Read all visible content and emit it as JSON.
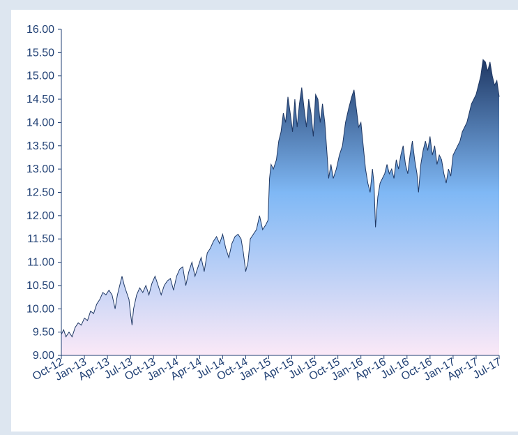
{
  "chart_data": {
    "type": "area",
    "title": "",
    "xlabel": "",
    "ylabel": "",
    "ylim": [
      9.0,
      16.0
    ],
    "y_ticks": [
      "9.00",
      "9.50",
      "10.00",
      "10.50",
      "11.00",
      "11.50",
      "12.00",
      "12.50",
      "13.00",
      "13.50",
      "14.00",
      "14.50",
      "15.00",
      "15.50",
      "16.00"
    ],
    "x_ticks": [
      "Oct-12",
      "Jan-13",
      "Apr-13",
      "Jul-13",
      "Oct-13",
      "Jan-14",
      "Apr-14",
      "Jul-14",
      "Oct-14",
      "Jan-15",
      "Apr-15",
      "Jul-15",
      "Oct-15",
      "Jan-16",
      "Apr-16",
      "Jul-16",
      "Oct-16",
      "Jan-17",
      "Apr-17",
      "Jul-17"
    ],
    "grid": false,
    "legend": "none",
    "colors": {
      "line": "#1f3864",
      "fill_top": "#1f3864",
      "fill_mid": "#7fb8f5",
      "fill_bottom": "#fbe9f7",
      "axis": "#1f3f73"
    },
    "series": [
      {
        "values": [
          [
            0,
            9.45
          ],
          [
            0.3,
            9.55
          ],
          [
            0.6,
            9.4
          ],
          [
            1.0,
            9.5
          ],
          [
            1.4,
            9.4
          ],
          [
            1.8,
            9.6
          ],
          [
            2.2,
            9.7
          ],
          [
            2.6,
            9.65
          ],
          [
            3.0,
            9.8
          ],
          [
            3.4,
            9.75
          ],
          [
            3.8,
            9.95
          ],
          [
            4.2,
            9.9
          ],
          [
            4.6,
            10.1
          ],
          [
            5.0,
            10.2
          ],
          [
            5.4,
            10.35
          ],
          [
            5.8,
            10.3
          ],
          [
            6.2,
            10.4
          ],
          [
            6.6,
            10.3
          ],
          [
            7.0,
            10.0
          ],
          [
            7.3,
            10.3
          ],
          [
            7.6,
            10.5
          ],
          [
            7.9,
            10.7
          ],
          [
            8.2,
            10.5
          ],
          [
            8.5,
            10.35
          ],
          [
            8.8,
            10.2
          ],
          [
            9.0,
            9.9
          ],
          [
            9.2,
            9.65
          ],
          [
            9.4,
            10.0
          ],
          [
            9.8,
            10.3
          ],
          [
            10.2,
            10.45
          ],
          [
            10.6,
            10.35
          ],
          [
            11.0,
            10.5
          ],
          [
            11.4,
            10.3
          ],
          [
            11.8,
            10.55
          ],
          [
            12.2,
            10.7
          ],
          [
            12.6,
            10.5
          ],
          [
            13.0,
            10.3
          ],
          [
            13.4,
            10.5
          ],
          [
            13.8,
            10.6
          ],
          [
            14.2,
            10.65
          ],
          [
            14.6,
            10.4
          ],
          [
            15.0,
            10.7
          ],
          [
            15.4,
            10.85
          ],
          [
            15.8,
            10.9
          ],
          [
            16.2,
            10.5
          ],
          [
            16.6,
            10.8
          ],
          [
            17.0,
            11.0
          ],
          [
            17.4,
            10.7
          ],
          [
            17.8,
            10.9
          ],
          [
            18.2,
            11.1
          ],
          [
            18.6,
            10.8
          ],
          [
            19.0,
            11.2
          ],
          [
            19.4,
            11.3
          ],
          [
            19.8,
            11.45
          ],
          [
            20.2,
            11.55
          ],
          [
            20.6,
            11.4
          ],
          [
            21.0,
            11.6
          ],
          [
            21.4,
            11.3
          ],
          [
            21.8,
            11.1
          ],
          [
            22.2,
            11.4
          ],
          [
            22.6,
            11.55
          ],
          [
            23.0,
            11.6
          ],
          [
            23.4,
            11.5
          ],
          [
            23.7,
            11.2
          ],
          [
            24.0,
            10.8
          ],
          [
            24.3,
            11.0
          ],
          [
            24.6,
            11.5
          ],
          [
            25.0,
            11.6
          ],
          [
            25.4,
            11.7
          ],
          [
            25.8,
            12.0
          ],
          [
            26.2,
            11.7
          ],
          [
            26.6,
            11.8
          ],
          [
            26.9,
            11.9
          ],
          [
            27.1,
            12.8
          ],
          [
            27.3,
            13.1
          ],
          [
            27.6,
            13.0
          ],
          [
            28.0,
            13.2
          ],
          [
            28.3,
            13.6
          ],
          [
            28.6,
            13.8
          ],
          [
            28.9,
            14.2
          ],
          [
            29.2,
            14.0
          ],
          [
            29.5,
            14.55
          ],
          [
            29.8,
            14.2
          ],
          [
            30.1,
            13.8
          ],
          [
            30.4,
            14.5
          ],
          [
            30.7,
            13.9
          ],
          [
            31.0,
            14.4
          ],
          [
            31.3,
            14.75
          ],
          [
            31.6,
            14.3
          ],
          [
            31.9,
            13.9
          ],
          [
            32.2,
            14.5
          ],
          [
            32.5,
            14.2
          ],
          [
            32.8,
            13.7
          ],
          [
            33.1,
            14.6
          ],
          [
            33.4,
            14.5
          ],
          [
            33.7,
            14.0
          ],
          [
            34.0,
            14.4
          ],
          [
            34.3,
            14.0
          ],
          [
            34.6,
            13.3
          ],
          [
            34.8,
            12.8
          ],
          [
            35.1,
            13.1
          ],
          [
            35.4,
            12.8
          ],
          [
            35.8,
            13.0
          ],
          [
            36.2,
            13.3
          ],
          [
            36.6,
            13.5
          ],
          [
            37.0,
            14.0
          ],
          [
            37.4,
            14.3
          ],
          [
            37.8,
            14.55
          ],
          [
            38.1,
            14.7
          ],
          [
            38.4,
            14.3
          ],
          [
            38.7,
            13.9
          ],
          [
            39.0,
            14.0
          ],
          [
            39.3,
            13.5
          ],
          [
            39.6,
            13.0
          ],
          [
            39.9,
            12.7
          ],
          [
            40.2,
            12.5
          ],
          [
            40.5,
            13.0
          ],
          [
            40.7,
            12.7
          ],
          [
            40.9,
            11.75
          ],
          [
            41.2,
            12.4
          ],
          [
            41.5,
            12.7
          ],
          [
            41.8,
            12.8
          ],
          [
            42.1,
            12.9
          ],
          [
            42.4,
            13.1
          ],
          [
            42.7,
            12.9
          ],
          [
            43.0,
            13.0
          ],
          [
            43.3,
            12.8
          ],
          [
            43.6,
            13.2
          ],
          [
            43.9,
            13.0
          ],
          [
            44.2,
            13.3
          ],
          [
            44.5,
            13.5
          ],
          [
            44.8,
            13.1
          ],
          [
            45.1,
            12.9
          ],
          [
            45.4,
            13.3
          ],
          [
            45.7,
            13.6
          ],
          [
            46.0,
            13.2
          ],
          [
            46.3,
            12.9
          ],
          [
            46.5,
            12.5
          ],
          [
            46.8,
            13.1
          ],
          [
            47.1,
            13.4
          ],
          [
            47.4,
            13.6
          ],
          [
            47.7,
            13.4
          ],
          [
            48.0,
            13.7
          ],
          [
            48.3,
            13.3
          ],
          [
            48.6,
            13.5
          ],
          [
            48.9,
            13.1
          ],
          [
            49.2,
            13.3
          ],
          [
            49.5,
            13.2
          ],
          [
            49.8,
            12.9
          ],
          [
            50.1,
            12.7
          ],
          [
            50.4,
            13.0
          ],
          [
            50.7,
            12.85
          ],
          [
            51.0,
            13.3
          ],
          [
            51.3,
            13.4
          ],
          [
            51.6,
            13.5
          ],
          [
            51.9,
            13.6
          ],
          [
            52.2,
            13.8
          ],
          [
            52.5,
            13.9
          ],
          [
            52.8,
            14.0
          ],
          [
            53.1,
            14.2
          ],
          [
            53.4,
            14.4
          ],
          [
            53.7,
            14.5
          ],
          [
            54.0,
            14.6
          ],
          [
            54.3,
            14.8
          ],
          [
            54.6,
            15.0
          ],
          [
            54.9,
            15.35
          ],
          [
            55.2,
            15.3
          ],
          [
            55.5,
            15.1
          ],
          [
            55.8,
            15.3
          ],
          [
            56.1,
            15.0
          ],
          [
            56.4,
            14.8
          ],
          [
            56.7,
            14.9
          ],
          [
            57.0,
            14.55
          ]
        ]
      }
    ]
  }
}
